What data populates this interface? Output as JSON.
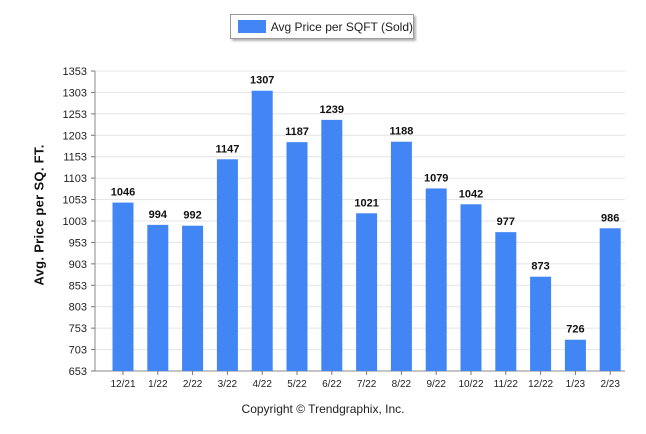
{
  "chart_data": {
    "type": "bar",
    "legend": "Avg Price per SQFT (Sold)",
    "ylabel": "Avg. Price per SQ. FT.",
    "footer": "Copyright © Trendgraphix, Inc.",
    "categories": [
      "12/21",
      "1/22",
      "2/22",
      "3/22",
      "4/22",
      "5/22",
      "6/22",
      "7/22",
      "8/22",
      "9/22",
      "10/22",
      "11/22",
      "12/22",
      "1/23",
      "2/23"
    ],
    "values": [
      1046,
      994,
      992,
      1147,
      1307,
      1187,
      1239,
      1021,
      1188,
      1079,
      1042,
      977,
      873,
      726,
      986
    ],
    "yticks": [
      653,
      703,
      753,
      803,
      853,
      903,
      953,
      1003,
      1053,
      1103,
      1153,
      1203,
      1253,
      1303,
      1353
    ],
    "ylim": [
      653,
      1353
    ],
    "bar_color": "#4285f4",
    "grid": true,
    "legend_position": "top-center"
  }
}
